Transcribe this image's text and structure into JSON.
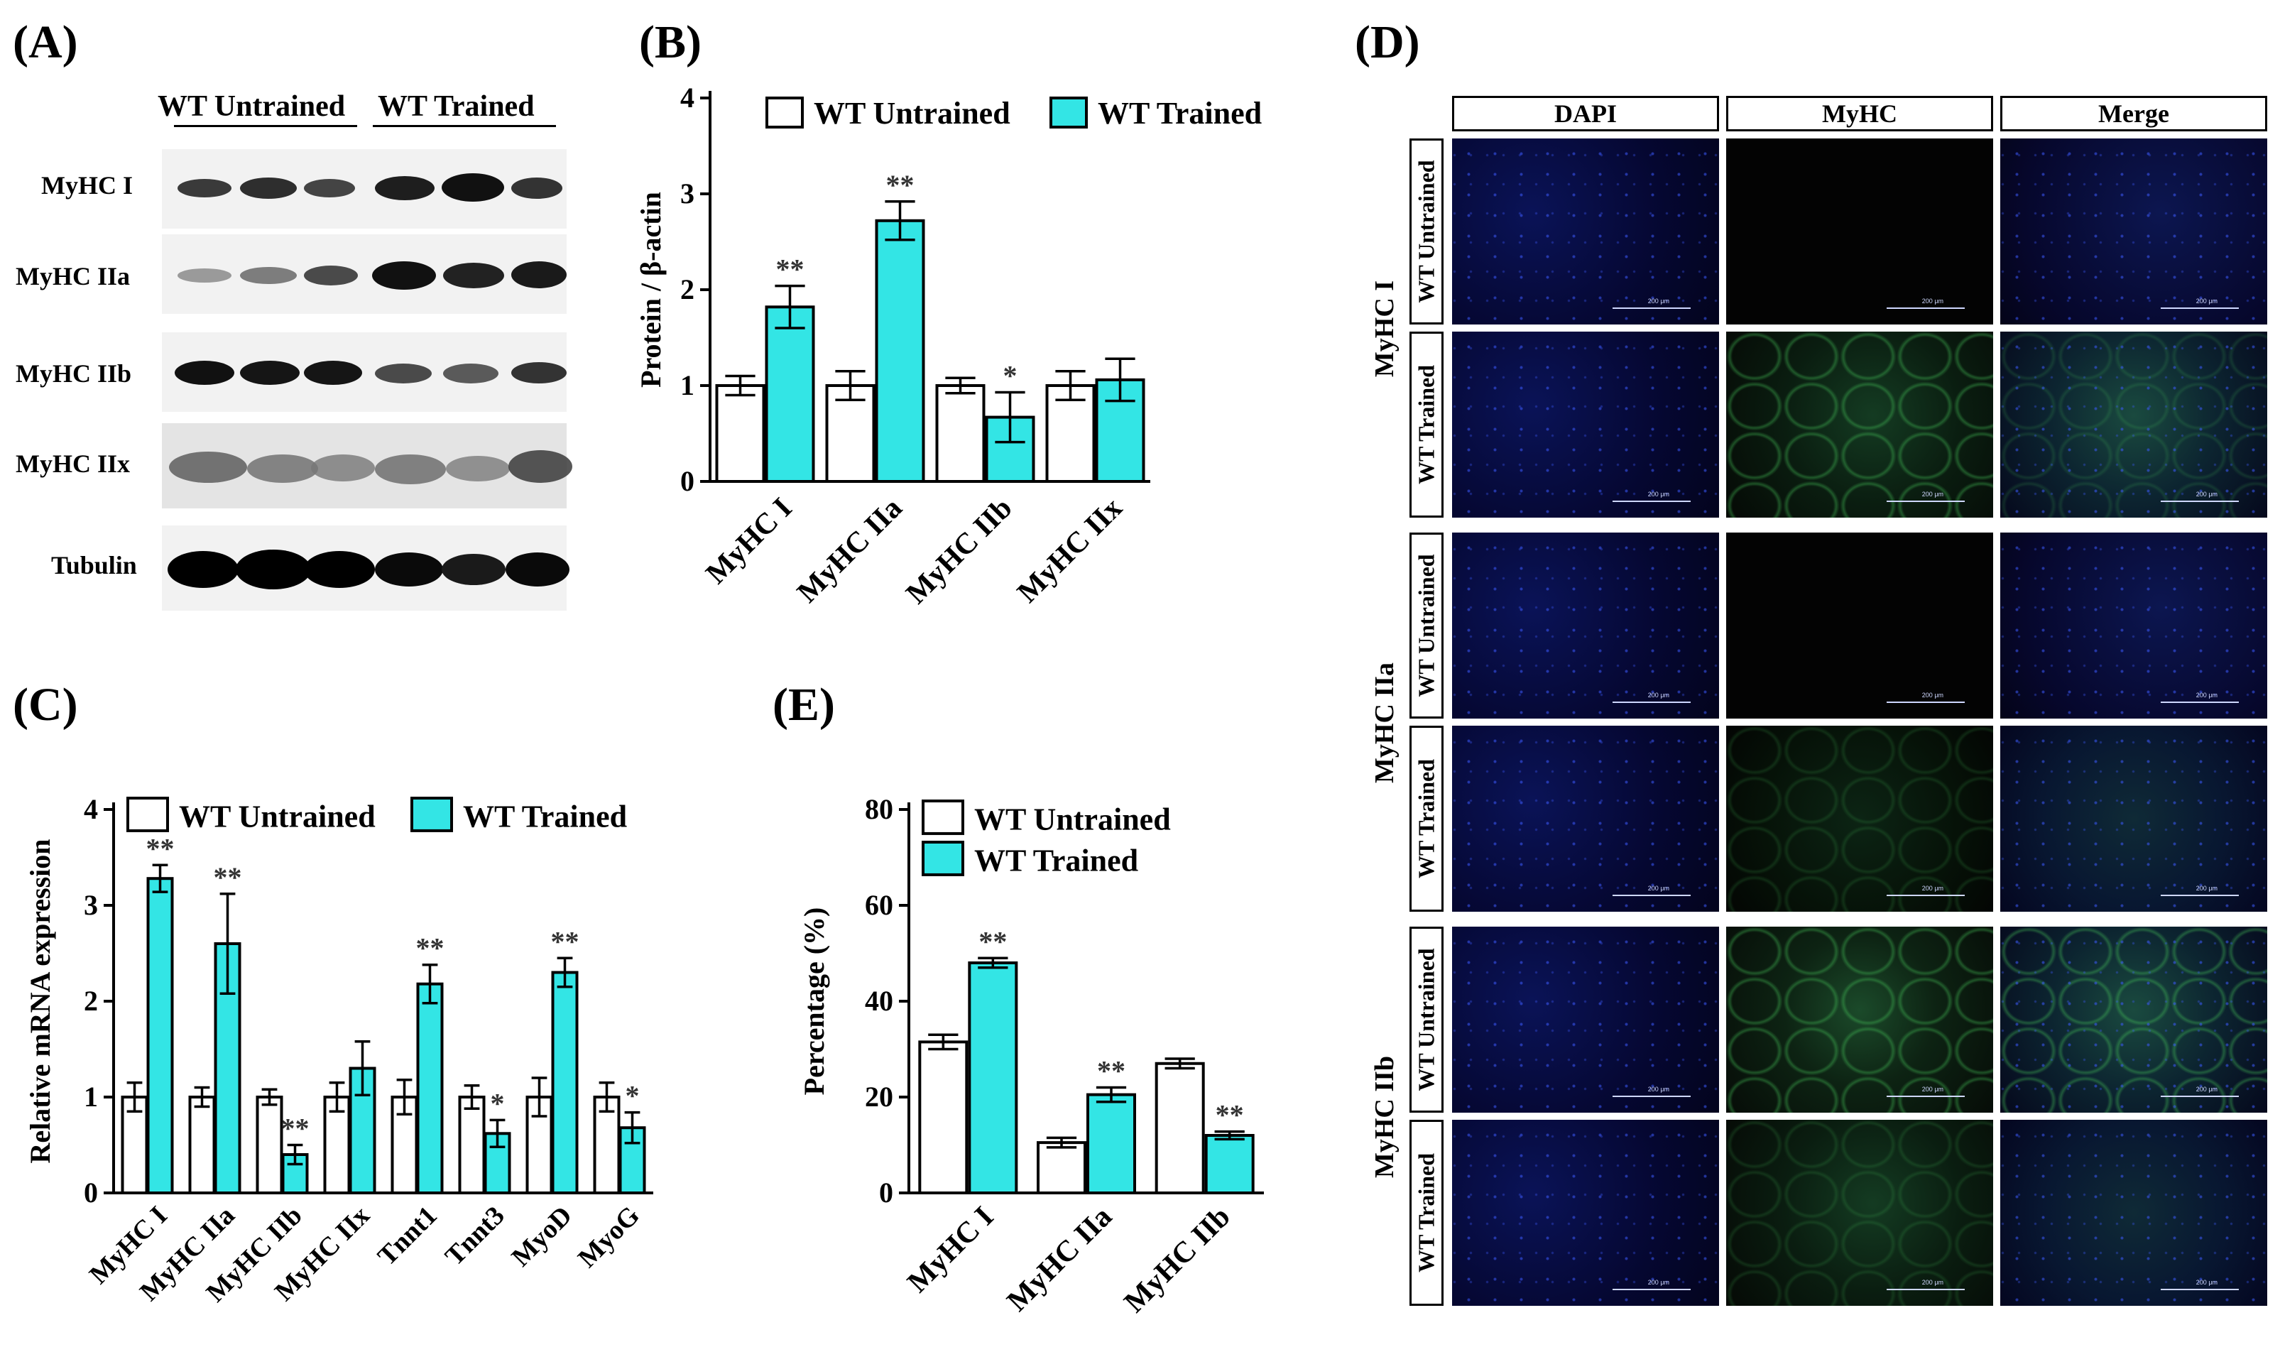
{
  "panel_labels": {
    "a": "(A)",
    "b": "(B)",
    "c": "(C)",
    "d": "(D)",
    "e": "(E)"
  },
  "panel_a": {
    "groups": [
      "WT Untrained",
      "WT Trained"
    ],
    "blots": [
      "MyHC I",
      "MyHC IIa",
      "MyHC IIb",
      "MyHC IIx",
      "Tubulin"
    ]
  },
  "panel_d": {
    "columns": [
      "DAPI",
      "MyHC",
      "Merge"
    ],
    "row_groups": [
      "MyHC I",
      "MyHC IIa",
      "MyHC IIb"
    ],
    "row_conditions": [
      "WT Untrained",
      "WT Trained"
    ],
    "scale_bar": "200 μm"
  },
  "chart_data": [
    {
      "id": "B",
      "type": "bar",
      "ylabel": "Protein / β-actin",
      "ylim": [
        0,
        4
      ],
      "yticks": [
        0,
        1,
        2,
        3,
        4
      ],
      "categories": [
        "MyHC I",
        "MyHC IIa",
        "MyHC IIb",
        "MyHC IIx"
      ],
      "legend": "top",
      "series": [
        {
          "name": "WT Untrained",
          "color": "#ffffff",
          "values": [
            1.0,
            1.0,
            1.0,
            1.0
          ],
          "errors": [
            0.1,
            0.15,
            0.08,
            0.15
          ],
          "sig": [
            "",
            "",
            "",
            ""
          ]
        },
        {
          "name": "WT Trained",
          "color": "#33e5e5",
          "values": [
            1.82,
            2.72,
            0.67,
            1.06
          ],
          "errors": [
            0.22,
            0.2,
            0.26,
            0.22
          ],
          "sig": [
            "**",
            "**",
            "*",
            ""
          ]
        }
      ]
    },
    {
      "id": "C",
      "type": "bar",
      "ylabel": "Relative  mRNA expression",
      "ylim": [
        0,
        4
      ],
      "yticks": [
        0,
        1,
        2,
        3,
        4
      ],
      "categories": [
        "MyHC I",
        "MyHC IIa",
        "MyHC IIb",
        "MyHC IIx",
        "Tnnt1",
        "Tnnt3",
        "MyoD",
        "MyoG"
      ],
      "legend": "top",
      "series": [
        {
          "name": "WT Untrained",
          "color": "#ffffff",
          "values": [
            1.0,
            1.0,
            1.0,
            1.0,
            1.0,
            1.0,
            1.0,
            1.0
          ],
          "errors": [
            0.15,
            0.1,
            0.08,
            0.15,
            0.18,
            0.12,
            0.2,
            0.15
          ],
          "sig": [
            "",
            "",
            "",
            "",
            "",
            "",
            "",
            ""
          ]
        },
        {
          "name": "WT Trained",
          "color": "#33e5e5",
          "values": [
            3.28,
            2.6,
            0.4,
            1.3,
            2.18,
            0.62,
            2.3,
            0.68
          ],
          "errors": [
            0.14,
            0.52,
            0.1,
            0.28,
            0.2,
            0.14,
            0.15,
            0.16
          ],
          "sig": [
            "**",
            "**",
            "**",
            "",
            "**",
            "*",
            "**",
            "*"
          ]
        }
      ]
    },
    {
      "id": "E",
      "type": "bar",
      "ylabel": "Percentage (%)",
      "ylim": [
        0,
        80
      ],
      "yticks": [
        0,
        20,
        40,
        60,
        80
      ],
      "categories": [
        "MyHC I",
        "MyHC IIa",
        "MyHC IIb"
      ],
      "legend": "top-right",
      "series": [
        {
          "name": "WT Untrained",
          "color": "#ffffff",
          "values": [
            31.5,
            10.5,
            27
          ],
          "errors": [
            1.5,
            1.0,
            1.0
          ],
          "sig": [
            "",
            "",
            ""
          ]
        },
        {
          "name": "WT Trained",
          "color": "#33e5e5",
          "values": [
            48,
            20.5,
            12
          ],
          "errors": [
            1.0,
            1.5,
            0.8
          ],
          "sig": [
            "**",
            "**",
            "**"
          ]
        }
      ]
    }
  ]
}
